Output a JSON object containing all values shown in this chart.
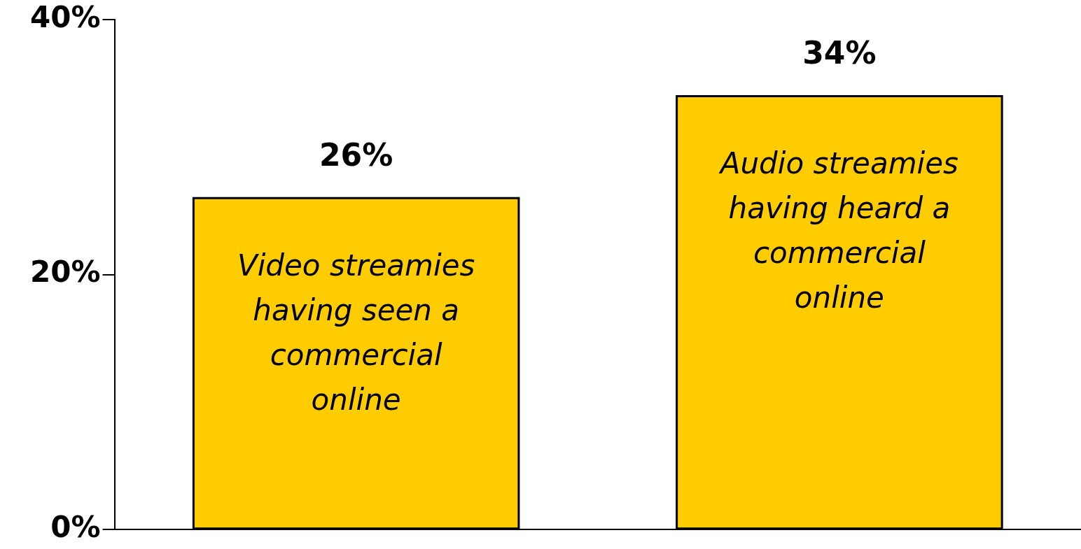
{
  "chart_data": {
    "type": "bar",
    "categories": [
      "Video streamies having seen a commercial online",
      "Audio streamies having heard a commercial online"
    ],
    "values": [
      26,
      34
    ],
    "color": "#ffcc00",
    "ylim": [
      0,
      40
    ],
    "yticks": [
      {
        "value": 0,
        "label": "0%"
      },
      {
        "value": 20,
        "label": "20%"
      },
      {
        "value": 40,
        "label": "40%"
      }
    ],
    "value_labels": [
      "26%",
      "34%"
    ],
    "grid": false,
    "legend": false
  }
}
